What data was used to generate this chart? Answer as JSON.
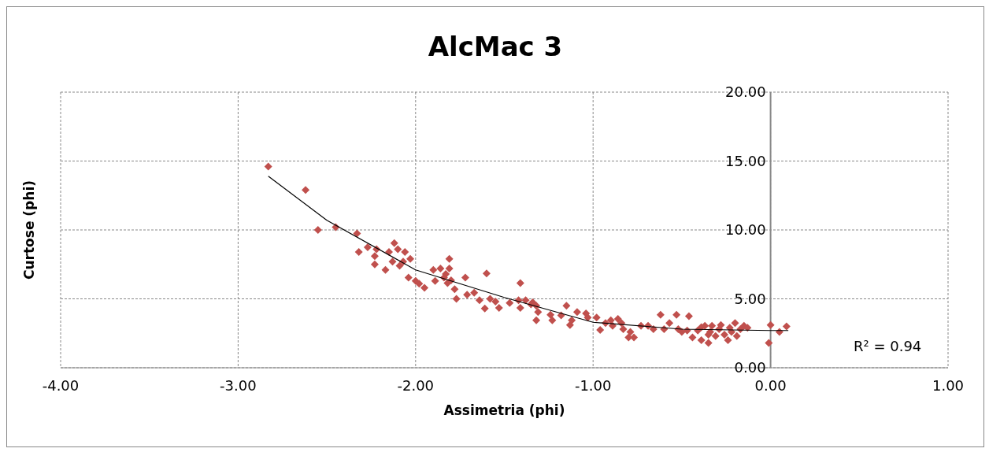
{
  "chart_data": {
    "type": "scatter",
    "title": "AlcMac 3",
    "xlabel": "Assimetria (phi)",
    "ylabel": "Curtose (phi)",
    "xlim": [
      -4,
      1
    ],
    "ylim": [
      0,
      20
    ],
    "xticks": [
      {
        "value": -4,
        "label": "-4.00"
      },
      {
        "value": -3,
        "label": "-3.00"
      },
      {
        "value": -2,
        "label": "-2.00"
      },
      {
        "value": -1,
        "label": "-1.00"
      },
      {
        "value": 0,
        "label": "0.00"
      },
      {
        "value": 1,
        "label": "1.00"
      }
    ],
    "yticks": [
      {
        "value": 0,
        "label": "0.00"
      },
      {
        "value": 5,
        "label": "5.00"
      },
      {
        "value": 10,
        "label": "10.00"
      },
      {
        "value": 15,
        "label": "15.00"
      },
      {
        "value": 20,
        "label": "20.00"
      }
    ],
    "grid": true,
    "annotations": [
      "R² = 0.94"
    ],
    "series": [
      {
        "type": "scatter",
        "color": "#c0504d",
        "marker": "diamond",
        "x": [
          -2.83,
          -2.62,
          -2.55,
          -2.45,
          -2.33,
          -2.32,
          -2.27,
          -2.23,
          -2.22,
          -2.23,
          -2.17,
          -2.15,
          -2.13,
          -2.12,
          -2.1,
          -2.09,
          -2.07,
          -2.06,
          -2.03,
          -2.04,
          -2.0,
          -1.98,
          -1.95,
          -1.9,
          -1.89,
          -1.86,
          -1.84,
          -1.82,
          -1.81,
          -1.83,
          -1.81,
          -1.8,
          -1.78,
          -1.77,
          -1.72,
          -1.71,
          -1.67,
          -1.64,
          -1.61,
          -1.6,
          -1.58,
          -1.55,
          -1.53,
          -1.47,
          -1.42,
          -1.41,
          -1.38,
          -1.41,
          -1.35,
          -1.32,
          -1.34,
          -1.31,
          -1.32,
          -1.24,
          -1.23,
          -1.18,
          -1.15,
          -1.13,
          -1.12,
          -1.09,
          -1.04,
          -1.03,
          -0.98,
          -0.96,
          -0.93,
          -0.9,
          -0.89,
          -0.86,
          -0.84,
          -0.83,
          -0.8,
          -0.79,
          -0.77,
          -0.73,
          -0.69,
          -0.66,
          -0.62,
          -0.6,
          -0.57,
          -0.53,
          -0.52,
          -0.5,
          -0.47,
          -0.46,
          -0.44,
          -0.41,
          -0.39,
          -0.37,
          -0.35,
          -0.34,
          -0.33,
          -0.31,
          -0.29,
          -0.28,
          -0.26,
          -0.24,
          -0.23,
          -0.22,
          -0.2,
          -0.19,
          -0.17,
          -0.15,
          -0.13,
          0.0,
          -0.01,
          0.05,
          0.09,
          -0.39,
          -0.35
        ],
        "values": [
          14.6,
          12.9,
          10.0,
          10.2,
          9.75,
          8.4,
          8.75,
          7.5,
          8.6,
          8.1,
          7.1,
          8.4,
          7.7,
          9.05,
          8.6,
          7.4,
          7.7,
          8.4,
          7.9,
          6.55,
          6.3,
          6.1,
          5.8,
          7.1,
          6.3,
          7.2,
          6.55,
          6.15,
          7.9,
          6.8,
          7.2,
          6.35,
          5.7,
          5.0,
          6.55,
          5.3,
          5.45,
          4.9,
          4.3,
          6.85,
          5.0,
          4.8,
          4.35,
          4.7,
          4.9,
          4.35,
          4.9,
          6.15,
          4.6,
          4.5,
          4.75,
          4.05,
          3.45,
          3.85,
          3.45,
          3.8,
          4.5,
          3.1,
          3.45,
          4.05,
          3.95,
          3.65,
          3.65,
          2.75,
          3.25,
          3.45,
          3.05,
          3.55,
          3.25,
          2.8,
          2.2,
          2.6,
          2.2,
          3.05,
          3.05,
          2.8,
          3.85,
          2.8,
          3.25,
          3.85,
          2.8,
          2.6,
          2.7,
          3.75,
          2.2,
          2.7,
          2.0,
          3.05,
          1.8,
          2.6,
          3.05,
          2.3,
          2.8,
          3.1,
          2.4,
          2.0,
          2.9,
          2.6,
          3.25,
          2.3,
          2.8,
          3.05,
          2.9,
          3.1,
          1.8,
          2.6,
          3.0,
          2.95,
          2.4
        ]
      },
      {
        "type": "line",
        "color": "#000000",
        "marker": "none",
        "x": [
          -2.83,
          -2.5,
          -2.0,
          -1.5,
          -1.0,
          -0.5,
          0.0,
          0.1
        ],
        "values": [
          13.9,
          10.7,
          7.1,
          5.1,
          3.3,
          2.8,
          2.7,
          2.7
        ]
      }
    ]
  }
}
